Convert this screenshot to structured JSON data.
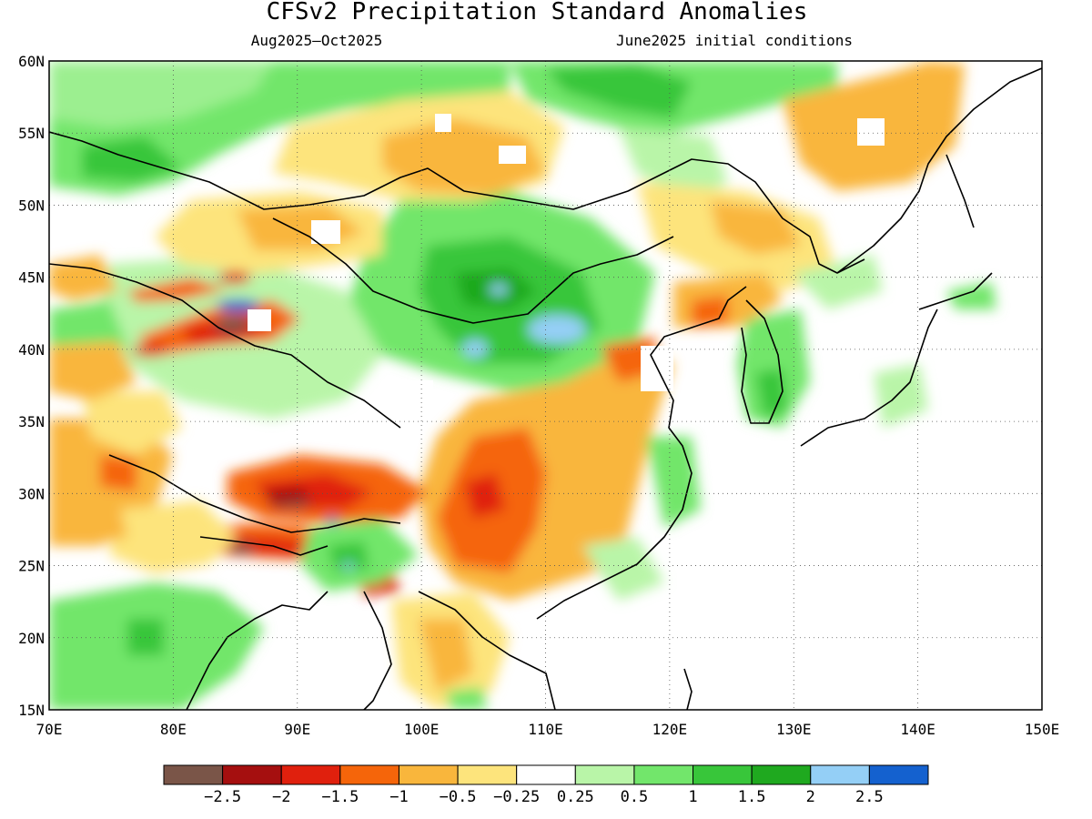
{
  "title": "CFSv2 Precipitation Standard Anomalies",
  "subtitle_left": "Aug2025–Oct2025",
  "subtitle_right": "June2025 initial conditions",
  "map": {
    "lon_range": [
      70,
      150
    ],
    "lat_range": [
      15,
      60
    ],
    "lon_ticks": [
      "70E",
      "80E",
      "90E",
      "100E",
      "110E",
      "120E",
      "130E",
      "140E",
      "150E"
    ],
    "lat_ticks": [
      "60N",
      "55N",
      "50N",
      "45N",
      "40N",
      "35N",
      "30N",
      "25N",
      "20N",
      "15N"
    ],
    "gridlines": "dotted"
  },
  "legend": {
    "colors": [
      "#7a5548",
      "#a50f0f",
      "#e0200d",
      "#f5650a",
      "#f9b63c",
      "#fde47c",
      "#ffffff",
      "#b9f5a8",
      "#72e66b",
      "#38c63a",
      "#1fa91f",
      "#94cff6",
      "#1461cf"
    ],
    "labels": [
      "−2.5",
      "−2",
      "−1.5",
      "−1",
      "−0.5",
      "−0.25",
      "0.25",
      "0.5",
      "1",
      "1.5",
      "2",
      "2.5"
    ]
  }
}
